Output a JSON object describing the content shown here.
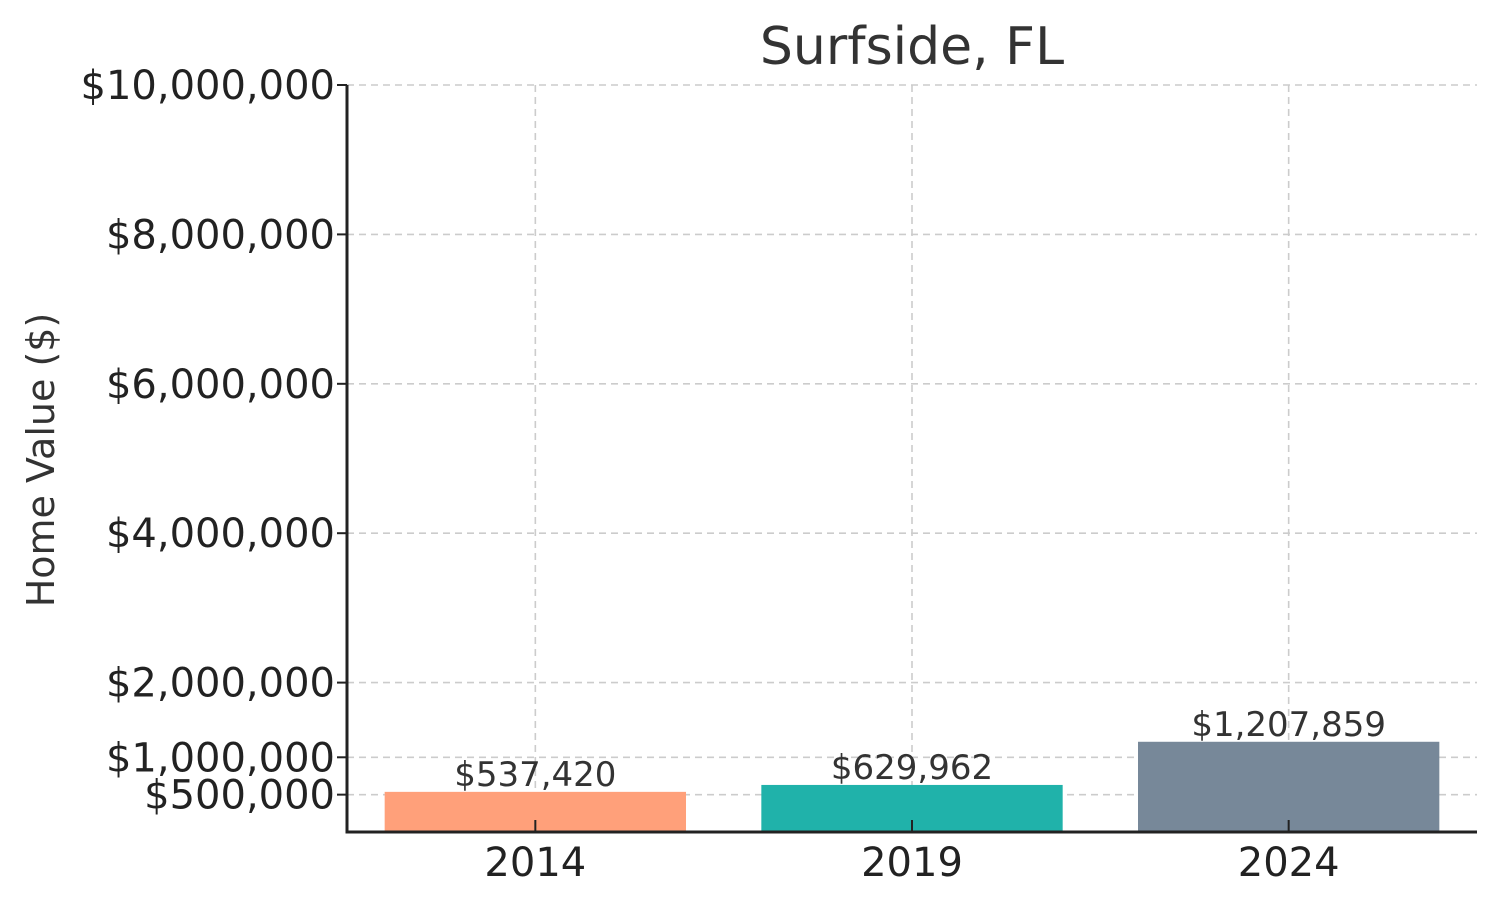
{
  "chart_data": {
    "type": "bar",
    "title": "Surfside, FL",
    "xlabel": "",
    "ylabel": "Home Value ($)",
    "categories": [
      "2014",
      "2019",
      "2024"
    ],
    "values": [
      537420,
      629962,
      1207859
    ],
    "value_labels": [
      "$537,420",
      "$629,962",
      "$1,207,859"
    ],
    "colors": [
      "#ffa07a",
      "#20b2aa",
      "#778899"
    ],
    "ylim": [
      0,
      10000000
    ],
    "yticks": [
      500000,
      1000000,
      2000000,
      4000000,
      6000000,
      8000000,
      10000000
    ],
    "ytick_labels": [
      "$500,000",
      "$1,000,000",
      "$2,000,000",
      "$4,000,000",
      "$6,000,000",
      "$8,000,000",
      "$10,000,000"
    ],
    "grid": true,
    "legend": "none"
  }
}
